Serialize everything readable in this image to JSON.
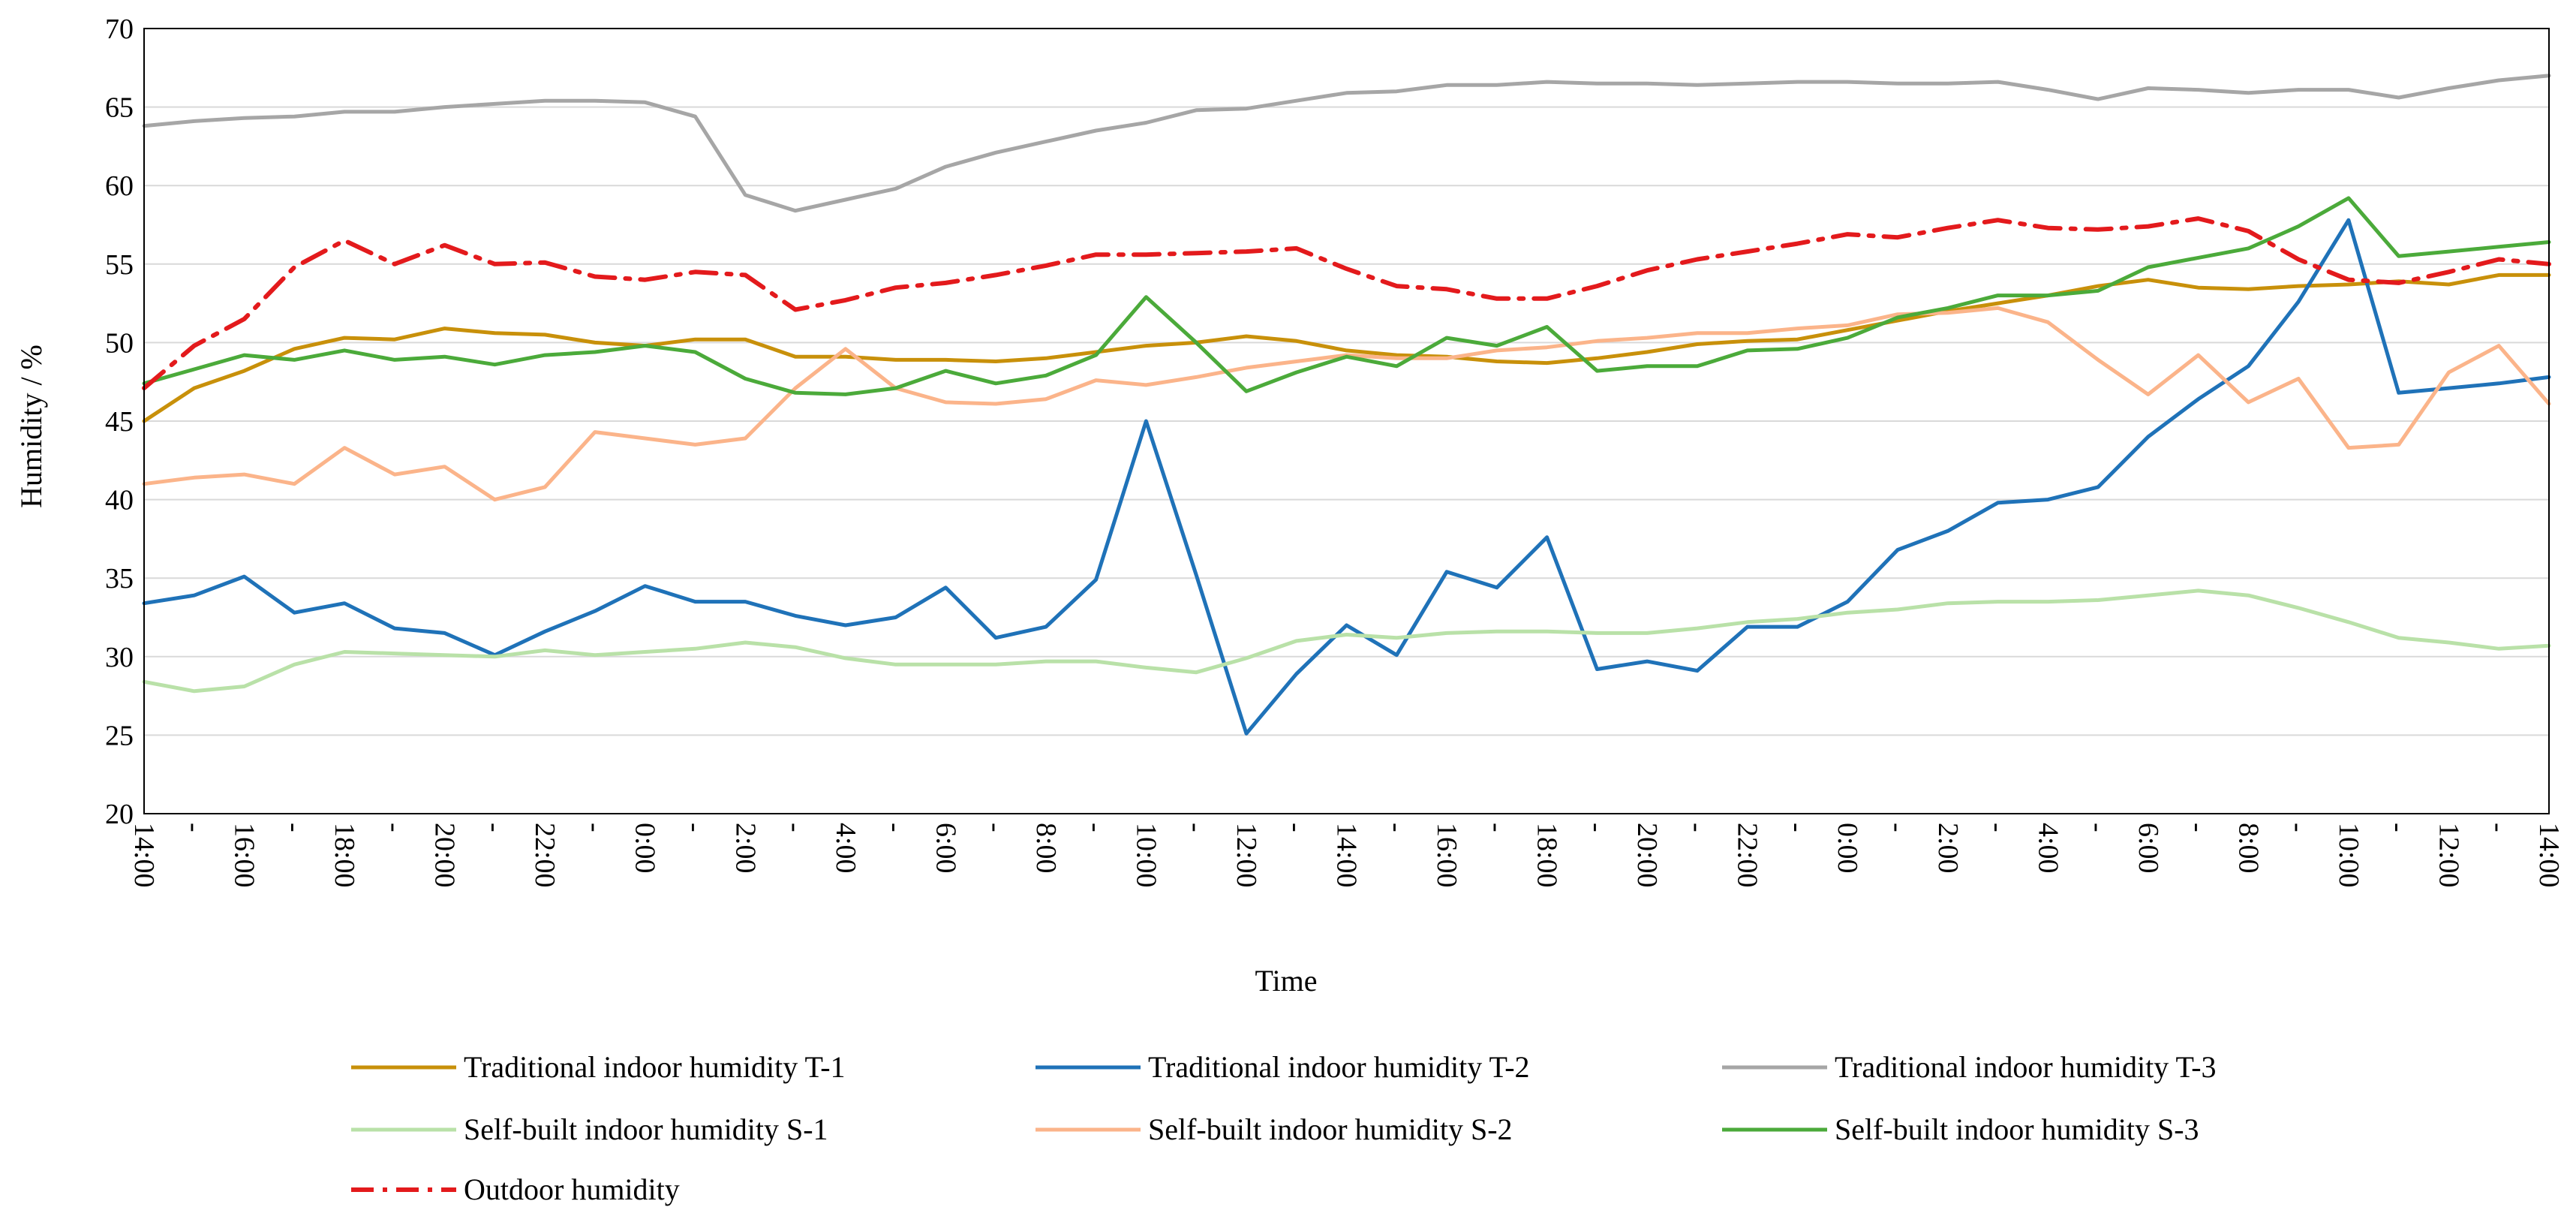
{
  "chart_data": {
    "type": "line",
    "title": "",
    "xlabel": "Time",
    "ylabel": "Humidity / %",
    "ylim": [
      20,
      70
    ],
    "yticks": [
      20,
      25,
      30,
      35,
      40,
      45,
      50,
      55,
      60,
      65,
      70
    ],
    "grid": "horizontal",
    "legend_position": "bottom",
    "x_tick_labels": [
      "14:00",
      "16:00",
      "18:00",
      "20:00",
      "22:00",
      "0:00",
      "2:00",
      "4:00",
      "6:00",
      "8:00",
      "10:00",
      "12:00",
      "14:00",
      "16:00",
      "18:00",
      "20:00",
      "22:00",
      "0:00",
      "2:00",
      "4:00",
      "6:00",
      "8:00",
      "10:00",
      "12:00",
      "14:00"
    ],
    "x_minor_tick_label": "-",
    "num_points": 49,
    "series": [
      {
        "name": "Traditional indoor humidity T-1",
        "color": "#C8900A",
        "dash": "solid",
        "values": [
          45.0,
          47.1,
          48.2,
          49.6,
          50.3,
          50.2,
          50.9,
          50.6,
          50.5,
          50.0,
          49.8,
          50.2,
          50.2,
          49.1,
          49.1,
          48.9,
          48.9,
          48.8,
          49.0,
          49.4,
          49.8,
          50.0,
          50.4,
          50.1,
          49.5,
          49.2,
          49.1,
          48.8,
          48.7,
          49.0,
          49.4,
          49.9,
          50.1,
          50.2,
          50.8,
          51.4,
          52.0,
          52.5,
          53.0,
          53.6,
          54.0,
          53.5,
          53.4,
          53.6,
          53.7,
          53.9,
          53.7,
          54.3,
          54.3
        ]
      },
      {
        "name": "Traditional indoor humidity T-2",
        "color": "#1F72B8",
        "dash": "solid",
        "values": [
          33.4,
          33.9,
          35.1,
          32.8,
          33.4,
          31.8,
          31.5,
          30.1,
          31.6,
          32.9,
          34.5,
          33.5,
          33.5,
          32.6,
          32.0,
          32.5,
          34.4,
          31.2,
          31.9,
          34.9,
          45.0,
          35.2,
          25.1,
          28.9,
          32.0,
          30.1,
          35.4,
          34.4,
          37.6,
          29.2,
          29.7,
          29.1,
          31.9,
          31.9,
          33.5,
          36.8,
          38.0,
          39.8,
          40.0,
          40.8,
          44.0,
          46.4,
          48.5,
          52.6,
          57.8,
          46.8,
          47.1,
          47.4,
          47.8
        ]
      },
      {
        "name": "Traditional indoor humidity T-3",
        "color": "#A6A6A6",
        "dash": "solid",
        "values": [
          63.8,
          64.1,
          64.3,
          64.4,
          64.7,
          64.7,
          65.0,
          65.2,
          65.4,
          65.4,
          65.3,
          64.4,
          59.4,
          58.4,
          59.1,
          59.8,
          61.2,
          62.1,
          62.8,
          63.5,
          64.0,
          64.8,
          64.9,
          65.4,
          65.9,
          66.0,
          66.4,
          66.4,
          66.6,
          66.5,
          66.5,
          66.4,
          66.5,
          66.6,
          66.6,
          66.5,
          66.5,
          66.6,
          66.1,
          65.5,
          66.2,
          66.1,
          65.9,
          66.1,
          66.1,
          65.6,
          66.2,
          66.7,
          67.0
        ]
      },
      {
        "name": "Self-built indoor humidity S-1",
        "color": "#B9E1A8",
        "dash": "solid",
        "values": [
          28.4,
          27.8,
          28.1,
          29.5,
          30.3,
          30.2,
          30.1,
          30.0,
          30.4,
          30.1,
          30.3,
          30.5,
          30.9,
          30.6,
          29.9,
          29.5,
          29.5,
          29.5,
          29.7,
          29.7,
          29.3,
          29.0,
          29.9,
          31.0,
          31.4,
          31.2,
          31.5,
          31.6,
          31.6,
          31.5,
          31.5,
          31.8,
          32.2,
          32.4,
          32.8,
          33.0,
          33.4,
          33.5,
          33.5,
          33.6,
          33.9,
          34.2,
          33.9,
          33.1,
          32.2,
          31.2,
          30.9,
          30.5,
          30.7
        ]
      },
      {
        "name": "Self-built indoor humidity S-2",
        "color": "#FBB48A",
        "dash": "solid",
        "values": [
          41.0,
          41.4,
          41.6,
          41.0,
          43.3,
          41.6,
          42.1,
          40.0,
          40.8,
          44.3,
          43.9,
          43.5,
          43.9,
          47.1,
          49.6,
          47.1,
          46.2,
          46.1,
          46.4,
          47.6,
          47.3,
          47.8,
          48.4,
          48.8,
          49.2,
          49.0,
          49.0,
          49.5,
          49.7,
          50.1,
          50.3,
          50.6,
          50.6,
          50.9,
          51.1,
          51.8,
          51.9,
          52.2,
          51.3,
          48.9,
          46.7,
          49.2,
          46.2,
          47.7,
          43.3,
          43.5,
          48.1,
          49.8,
          46.1
        ]
      },
      {
        "name": "Self-built indoor humidity S-3",
        "color": "#4BAA3A",
        "dash": "solid",
        "values": [
          47.4,
          48.3,
          49.2,
          48.9,
          49.5,
          48.9,
          49.1,
          48.6,
          49.2,
          49.4,
          49.8,
          49.4,
          47.7,
          46.8,
          46.7,
          47.1,
          48.2,
          47.4,
          47.9,
          49.2,
          52.9,
          50.0,
          46.9,
          48.1,
          49.1,
          48.5,
          50.3,
          49.8,
          51.0,
          48.2,
          48.5,
          48.5,
          49.5,
          49.6,
          50.3,
          51.6,
          52.2,
          53.0,
          53.0,
          53.3,
          54.8,
          55.4,
          56.0,
          57.4,
          59.2,
          55.5,
          55.8,
          56.1,
          56.4
        ]
      },
      {
        "name": "Outdoor humidity",
        "color": "#E31A1C",
        "dash": "dash-dot",
        "values": [
          47.1,
          49.8,
          51.5,
          54.8,
          56.5,
          55.0,
          56.2,
          55.0,
          55.1,
          54.2,
          54.0,
          54.5,
          54.3,
          52.1,
          52.7,
          53.5,
          53.8,
          54.3,
          54.9,
          55.6,
          55.6,
          55.7,
          55.8,
          56.0,
          54.7,
          53.6,
          53.4,
          52.8,
          52.8,
          53.6,
          54.6,
          55.3,
          55.8,
          56.3,
          56.9,
          56.7,
          57.3,
          57.8,
          57.3,
          57.2,
          57.4,
          57.9,
          57.1,
          55.3,
          54.0,
          53.8,
          54.5,
          55.3,
          55.0
        ]
      }
    ]
  }
}
